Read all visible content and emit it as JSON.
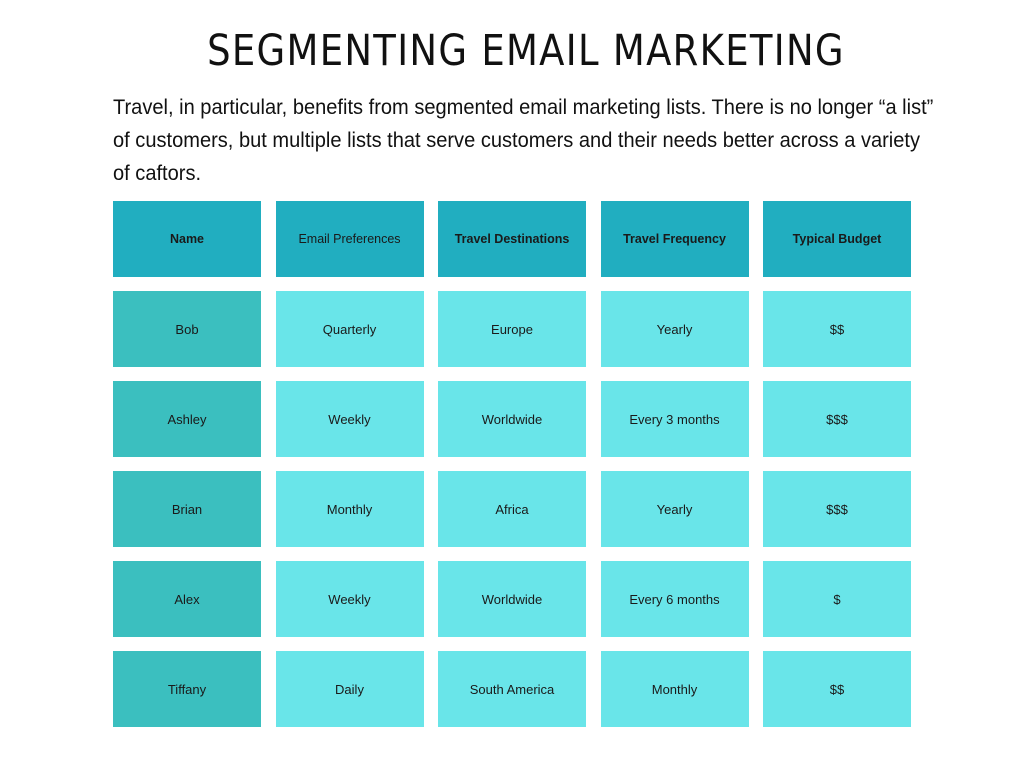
{
  "title": "SEGMENTING EMAIL MARKETING",
  "intro": "Travel, in particular, benefits from segmented email marketing lists. There is no longer “a list” of customers, but multiple lists that serve customers and their needs better across a variety of caftors.",
  "colors": {
    "header": "#21aec0",
    "name_column": "#3bbfbf",
    "body_cells": "#69e5e9"
  },
  "table": {
    "headers": [
      "Name",
      "Email Preferences",
      "Travel Destinations",
      "Travel Frequency",
      "Typical Budget"
    ],
    "rows": [
      [
        "Bob",
        "Quarterly",
        "Europe",
        "Yearly",
        "$$"
      ],
      [
        "Ashley",
        "Weekly",
        "Worldwide",
        "Every 3 months",
        "$$$"
      ],
      [
        "Brian",
        "Monthly",
        "Africa",
        "Yearly",
        "$$$"
      ],
      [
        "Alex",
        "Weekly",
        "Worldwide",
        "Every 6 months",
        "$"
      ],
      [
        "Tiffany",
        "Daily",
        "South America",
        "Monthly",
        "$$"
      ]
    ]
  }
}
